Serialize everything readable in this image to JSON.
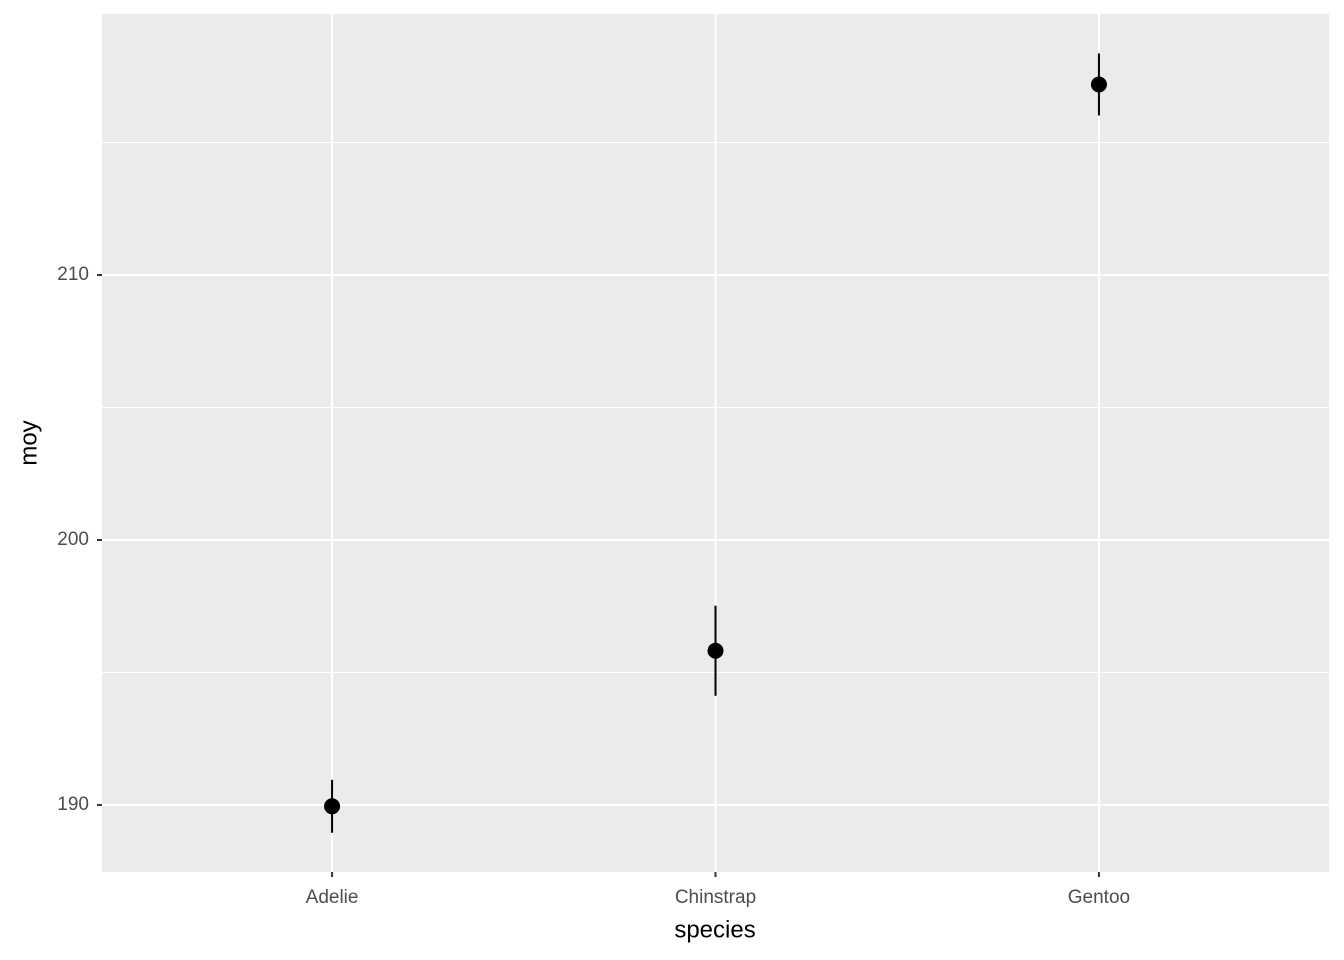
{
  "chart_data": {
    "type": "pointrange",
    "x_label": "species",
    "y_label": "moy",
    "categories": [
      "Adelie",
      "Chinstrap",
      "Gentoo"
    ],
    "values": [
      189.95,
      195.82,
      217.19
    ],
    "errors": [
      1.0,
      1.7,
      1.17
    ],
    "color": "#000000",
    "ylim": [
      187.47,
      219.85
    ],
    "yticks": [
      190,
      200,
      210
    ],
    "y_minor_ticks": [
      195,
      205,
      215
    ],
    "grid": true
  }
}
